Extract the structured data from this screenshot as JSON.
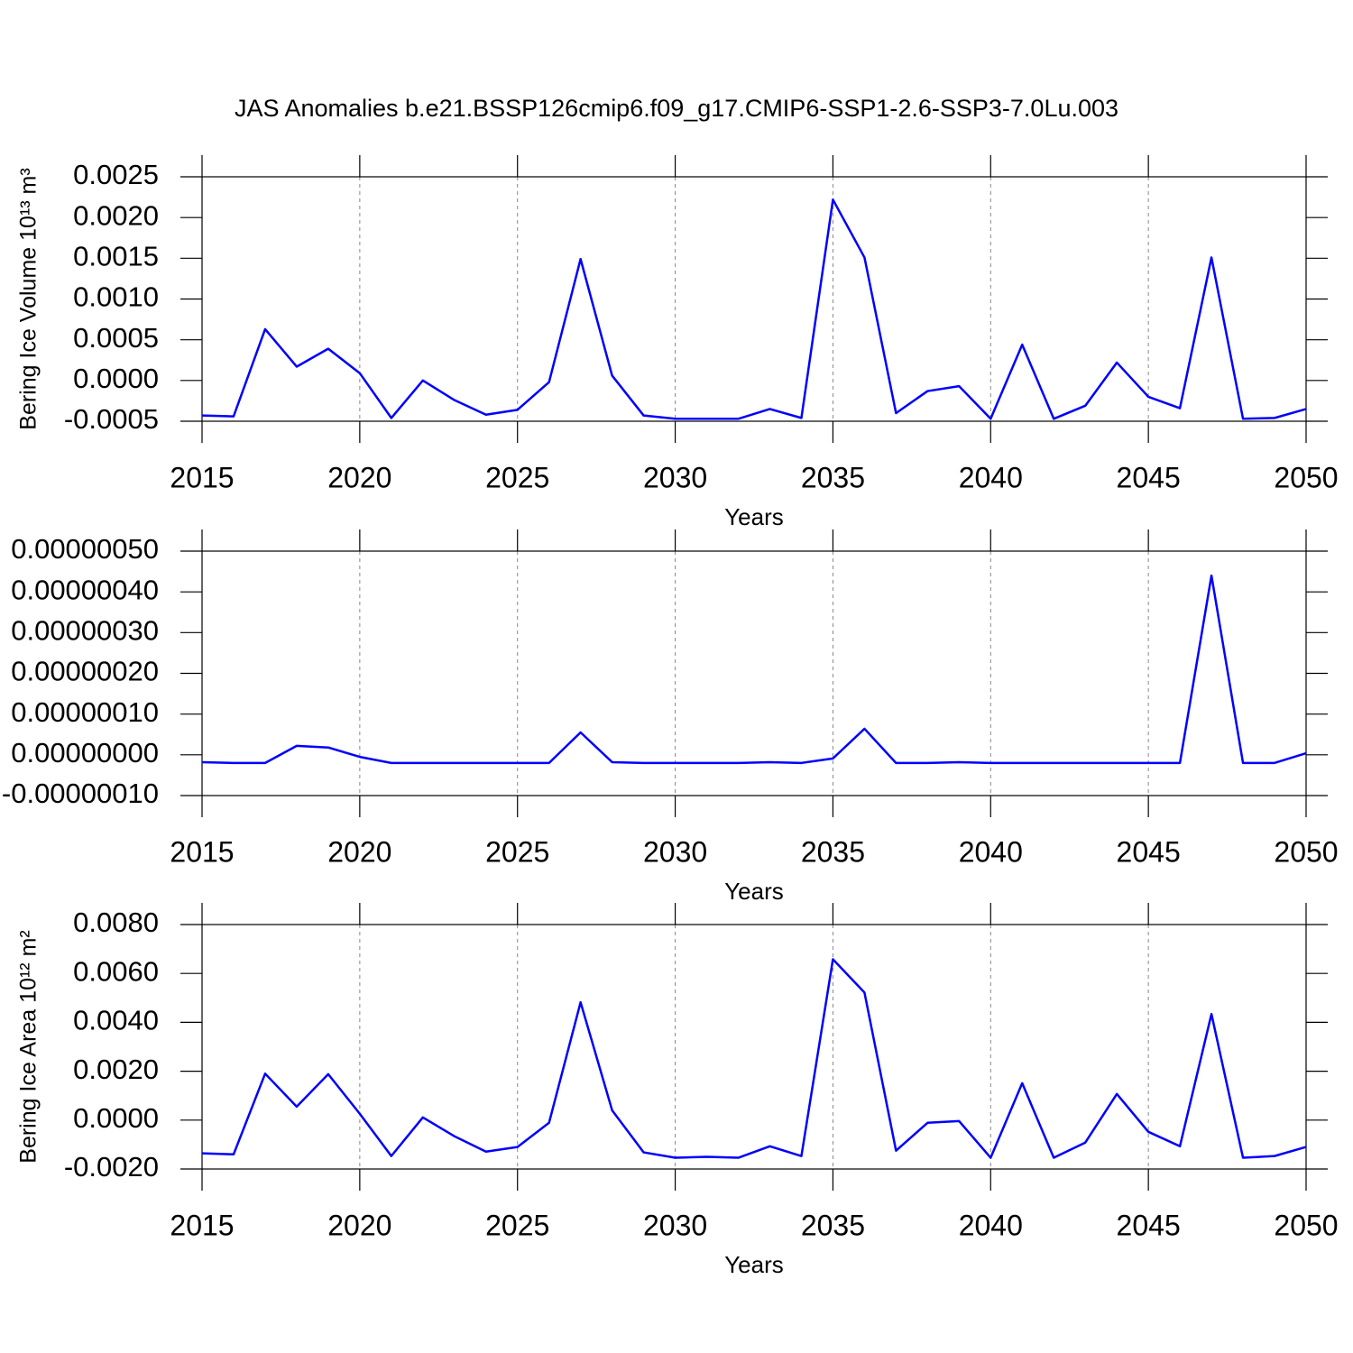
{
  "chart_data": [
    {
      "type": "line",
      "title": "JAS Anomalies b.e21.BSSP126cmip6.f09_g17.CMIP6-SSP1-2.6-SSP3-7.0Lu.003",
      "xlabel": "Years",
      "ylabel": "Bering Ice Volume 10¹³ m³",
      "grid": true,
      "color": "#0000ff",
      "x": [
        2015,
        2016,
        2017,
        2018,
        2019,
        2020,
        2021,
        2022,
        2023,
        2024,
        2025,
        2026,
        2027,
        2028,
        2029,
        2030,
        2031,
        2032,
        2033,
        2034,
        2035,
        2036,
        2037,
        2038,
        2039,
        2040,
        2041,
        2042,
        2043,
        2044,
        2045,
        2046,
        2047,
        2048,
        2049,
        2050
      ],
      "values": [
        -0.00043,
        -0.00044,
        0.00063,
        0.00017,
        0.00039,
        9e-05,
        -0.00046,
        0.0,
        -0.00024,
        -0.00042,
        -0.00036,
        -2e-05,
        0.00149,
        6e-05,
        -0.00043,
        -0.00047,
        -0.00047,
        -0.00047,
        -0.00035,
        -0.00046,
        0.00222,
        0.00151,
        -0.0004,
        -0.00013,
        -7e-05,
        -0.00047,
        0.00044,
        -0.00047,
        -0.00031,
        0.00022,
        -0.0002,
        -0.00034,
        0.00151,
        -0.00047,
        -0.00046,
        -0.00035
      ],
      "xlim": [
        2015,
        2050
      ],
      "xticks": [
        2015,
        2020,
        2025,
        2030,
        2035,
        2040,
        2045,
        2050
      ],
      "ylim": [
        -0.0005,
        0.0025
      ],
      "yticks": [
        0.0025,
        {
          "value": 0.002,
          "label": "0.0020"
        },
        0.0015,
        {
          "value": 0.001,
          "label": "0.0010"
        },
        0.0005,
        {
          "value": 0,
          "label": "0.0000"
        },
        -0.0005
      ]
    },
    {
      "type": "line",
      "xlabel": "Years",
      "grid": true,
      "color": "#0000ff",
      "x": [
        2015,
        2016,
        2017,
        2018,
        2019,
        2020,
        2021,
        2022,
        2023,
        2024,
        2025,
        2026,
        2027,
        2028,
        2029,
        2030,
        2031,
        2032,
        2033,
        2034,
        2035,
        2036,
        2037,
        2038,
        2039,
        2040,
        2041,
        2042,
        2043,
        2044,
        2045,
        2046,
        2047,
        2048,
        2049,
        2050
      ],
      "values": [
        -1.8e-08,
        -2e-08,
        -2e-08,
        2.2e-08,
        1.8e-08,
        -5e-09,
        -2e-08,
        -2e-08,
        -2e-08,
        -2e-08,
        -2e-08,
        -2e-08,
        5.5e-08,
        -1.8e-08,
        -2e-08,
        -2e-08,
        -2e-08,
        -2e-08,
        -1.8e-08,
        -2e-08,
        -9e-09,
        6.4e-08,
        -2e-08,
        -2e-08,
        -1.8e-08,
        -2e-08,
        -2e-08,
        -2e-08,
        -2e-08,
        -2e-08,
        -2e-08,
        -2e-08,
        4.4e-07,
        -2e-08,
        -2e-08,
        4e-09
      ],
      "xlim": [
        2015,
        2050
      ],
      "xticks": [
        2015,
        2020,
        2025,
        2030,
        2035,
        2040,
        2045,
        2050
      ],
      "ylim": [
        -1e-07,
        5e-07
      ],
      "yticks": [
        {
          "value": 5e-07,
          "label": "0.00000050"
        },
        {
          "value": 4e-07,
          "label": "0.00000040"
        },
        {
          "value": 3e-07,
          "label": "0.00000030"
        },
        {
          "value": 2e-07,
          "label": "0.00000020"
        },
        {
          "value": 1e-07,
          "label": "0.00000010"
        },
        {
          "value": 0,
          "label": "0.00000000"
        },
        {
          "value": -1e-07,
          "label": "-0.00000010"
        }
      ]
    },
    {
      "type": "line",
      "xlabel": "Years",
      "ylabel": "Bering Ice Area 10¹² m²",
      "grid": true,
      "color": "#0000ff",
      "x": [
        2015,
        2016,
        2017,
        2018,
        2019,
        2020,
        2021,
        2022,
        2023,
        2024,
        2025,
        2026,
        2027,
        2028,
        2029,
        2030,
        2031,
        2032,
        2033,
        2034,
        2035,
        2036,
        2037,
        2038,
        2039,
        2040,
        2041,
        2042,
        2043,
        2044,
        2045,
        2046,
        2047,
        2048,
        2049,
        2050
      ],
      "values": [
        -0.00136,
        -0.0014,
        0.0019,
        0.00055,
        0.00188,
        0.00026,
        -0.00147,
        0.00011,
        -0.00066,
        -0.00129,
        -0.0011,
        -0.00011,
        0.00482,
        0.0004,
        -0.00132,
        -0.00154,
        -0.0015,
        -0.00154,
        -0.00107,
        -0.00147,
        0.00658,
        0.00522,
        -0.00125,
        -0.00011,
        -4e-05,
        -0.00154,
        0.00151,
        -0.00154,
        -0.00092,
        0.00107,
        -0.00048,
        -0.00107,
        0.00434,
        -0.00154,
        -0.00147,
        -0.0011
      ],
      "xlim": [
        2015,
        2050
      ],
      "xticks": [
        2015,
        2020,
        2025,
        2030,
        2035,
        2040,
        2045,
        2050
      ],
      "ylim": [
        -0.002,
        0.008
      ],
      "yticks": [
        {
          "value": 0.008,
          "label": "0.0080"
        },
        {
          "value": 0.006,
          "label": "0.0060"
        },
        {
          "value": 0.004,
          "label": "0.0040"
        },
        {
          "value": 0.002,
          "label": "0.0020"
        },
        {
          "value": 0,
          "label": "0.0000"
        },
        {
          "value": -0.002,
          "label": "-0.0020"
        }
      ]
    }
  ]
}
